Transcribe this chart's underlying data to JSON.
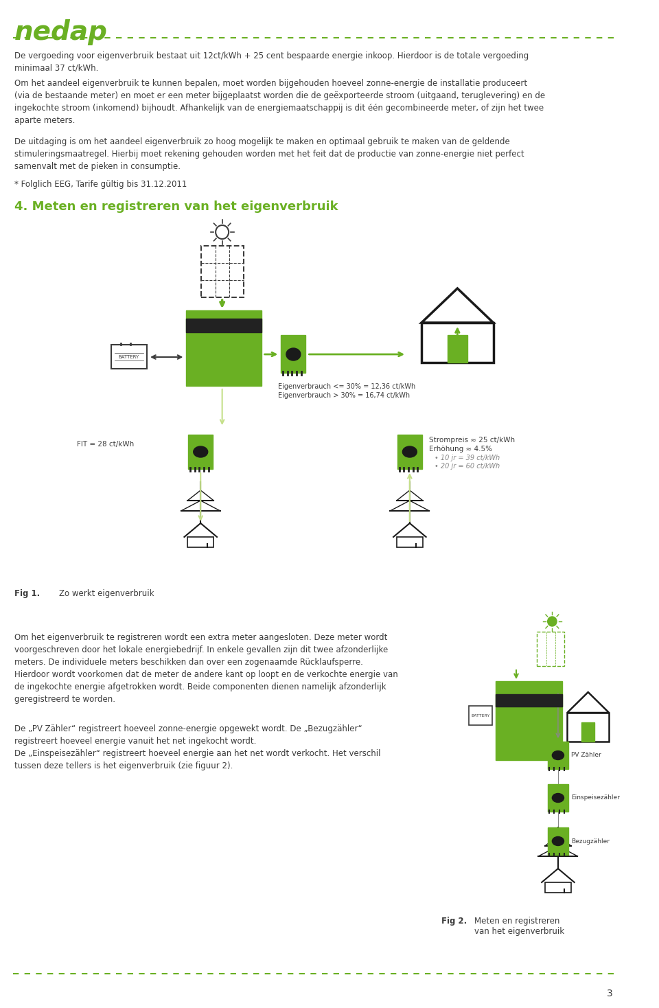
{
  "page_bg": "#ffffff",
  "green_color": "#6ab023",
  "dark_text": "#3c3c3c",
  "page_number": "3",
  "logo_text": "nedap",
  "section_heading": "4. Meten en registreren van het eigenverbruik",
  "para1": "De vergoeding voor eigenverbruik bestaat uit 12ct/kWh + 25 cent bespaarde energie inkoop. Hierdoor is de totale vergoeding\nminimaal 37 ct/kWh.",
  "para2": "Om het aandeel eigenverbruik te kunnen bepalen, moet worden bijgehouden hoeveel zonne-energie de installatie produceert\n(via de bestaande meter) en moet er een meter bijgeplaatst worden die de geëxporteerde stroom (uitgaand, teruglevering) en de\ningekochte stroom (inkomend) bijhoudt. Afhankelijk van de energiemaatschappij is dit één gecombineerde meter, of zijn het twee\naparte meters.",
  "para3": "De uitdaging is om het aandeel eigenverbruik zo hoog mogelijk te maken en optimaal gebruik te maken van de geldende\nstimuleringsmaatregel. Hierbij moet rekening gehouden worden met het feit dat de productie van zonne-energie niet perfect\nsamenvalt met de pieken in consumptie.",
  "footnote": "* Folglich EEG, Tarife gültig bis 31.12.2011",
  "fig1_caption_label": "Fig 1.",
  "fig1_caption_text": "Zo werkt eigenverbruik",
  "fig2_caption_label": "Fig 2.",
  "fig2_caption_text": "Meten en registreren\nvan het eigenverbruik",
  "para_bottom1": "Om het eigenverbruik te registreren wordt een extra meter aangesloten. Deze meter wordt\nvoorgeschreven door het lokale energiebedrijf. In enkele gevallen zijn dit twee afzonderlijke\nmeters. De individuele meters beschikken dan over een zogenaamde Rücklaufsperre.\nHierdoor wordt voorkomen dat de meter de andere kant op loopt en de verkochte energie van\nde ingekochte energie afgetrokken wordt. Beide componenten dienen namelijk afzonderlijk\ngeregistreerd te worden.",
  "para_bottom2": "De „PV Zähler“ registreert hoeveel zonne-energie opgewekt wordt. De „Bezugzähler“\nregistreert hoeveel energie vanuit het net ingekocht wordt.\nDe „Einspeisezähler“ registreert hoeveel energie aan het net wordt verkocht. Het verschil\ntussen deze tellers is het eigenverbruik (zie figuur 2).",
  "eigenverbrauch_low": "Eigenverbrauch <= 30% = 12,36 ct/kWh",
  "eigenverbrauch_high": "Eigenverbrauch > 30% = 16,74 ct/kWh",
  "fit_label": "FIT = 28 ct/kWh",
  "strompreis_label": "Strompreis ≈ 25 ct/kWh",
  "erhohung_label": "Erhöhung ≈ 4.5%",
  "bullet1": "• 10 jr = 39 ct/kWh",
  "bullet2": "• 20 jr = 60 ct/kWh",
  "meter_labels_right": [
    "PV Zähler",
    "Einspeisezähler",
    "Bezugzähler"
  ]
}
